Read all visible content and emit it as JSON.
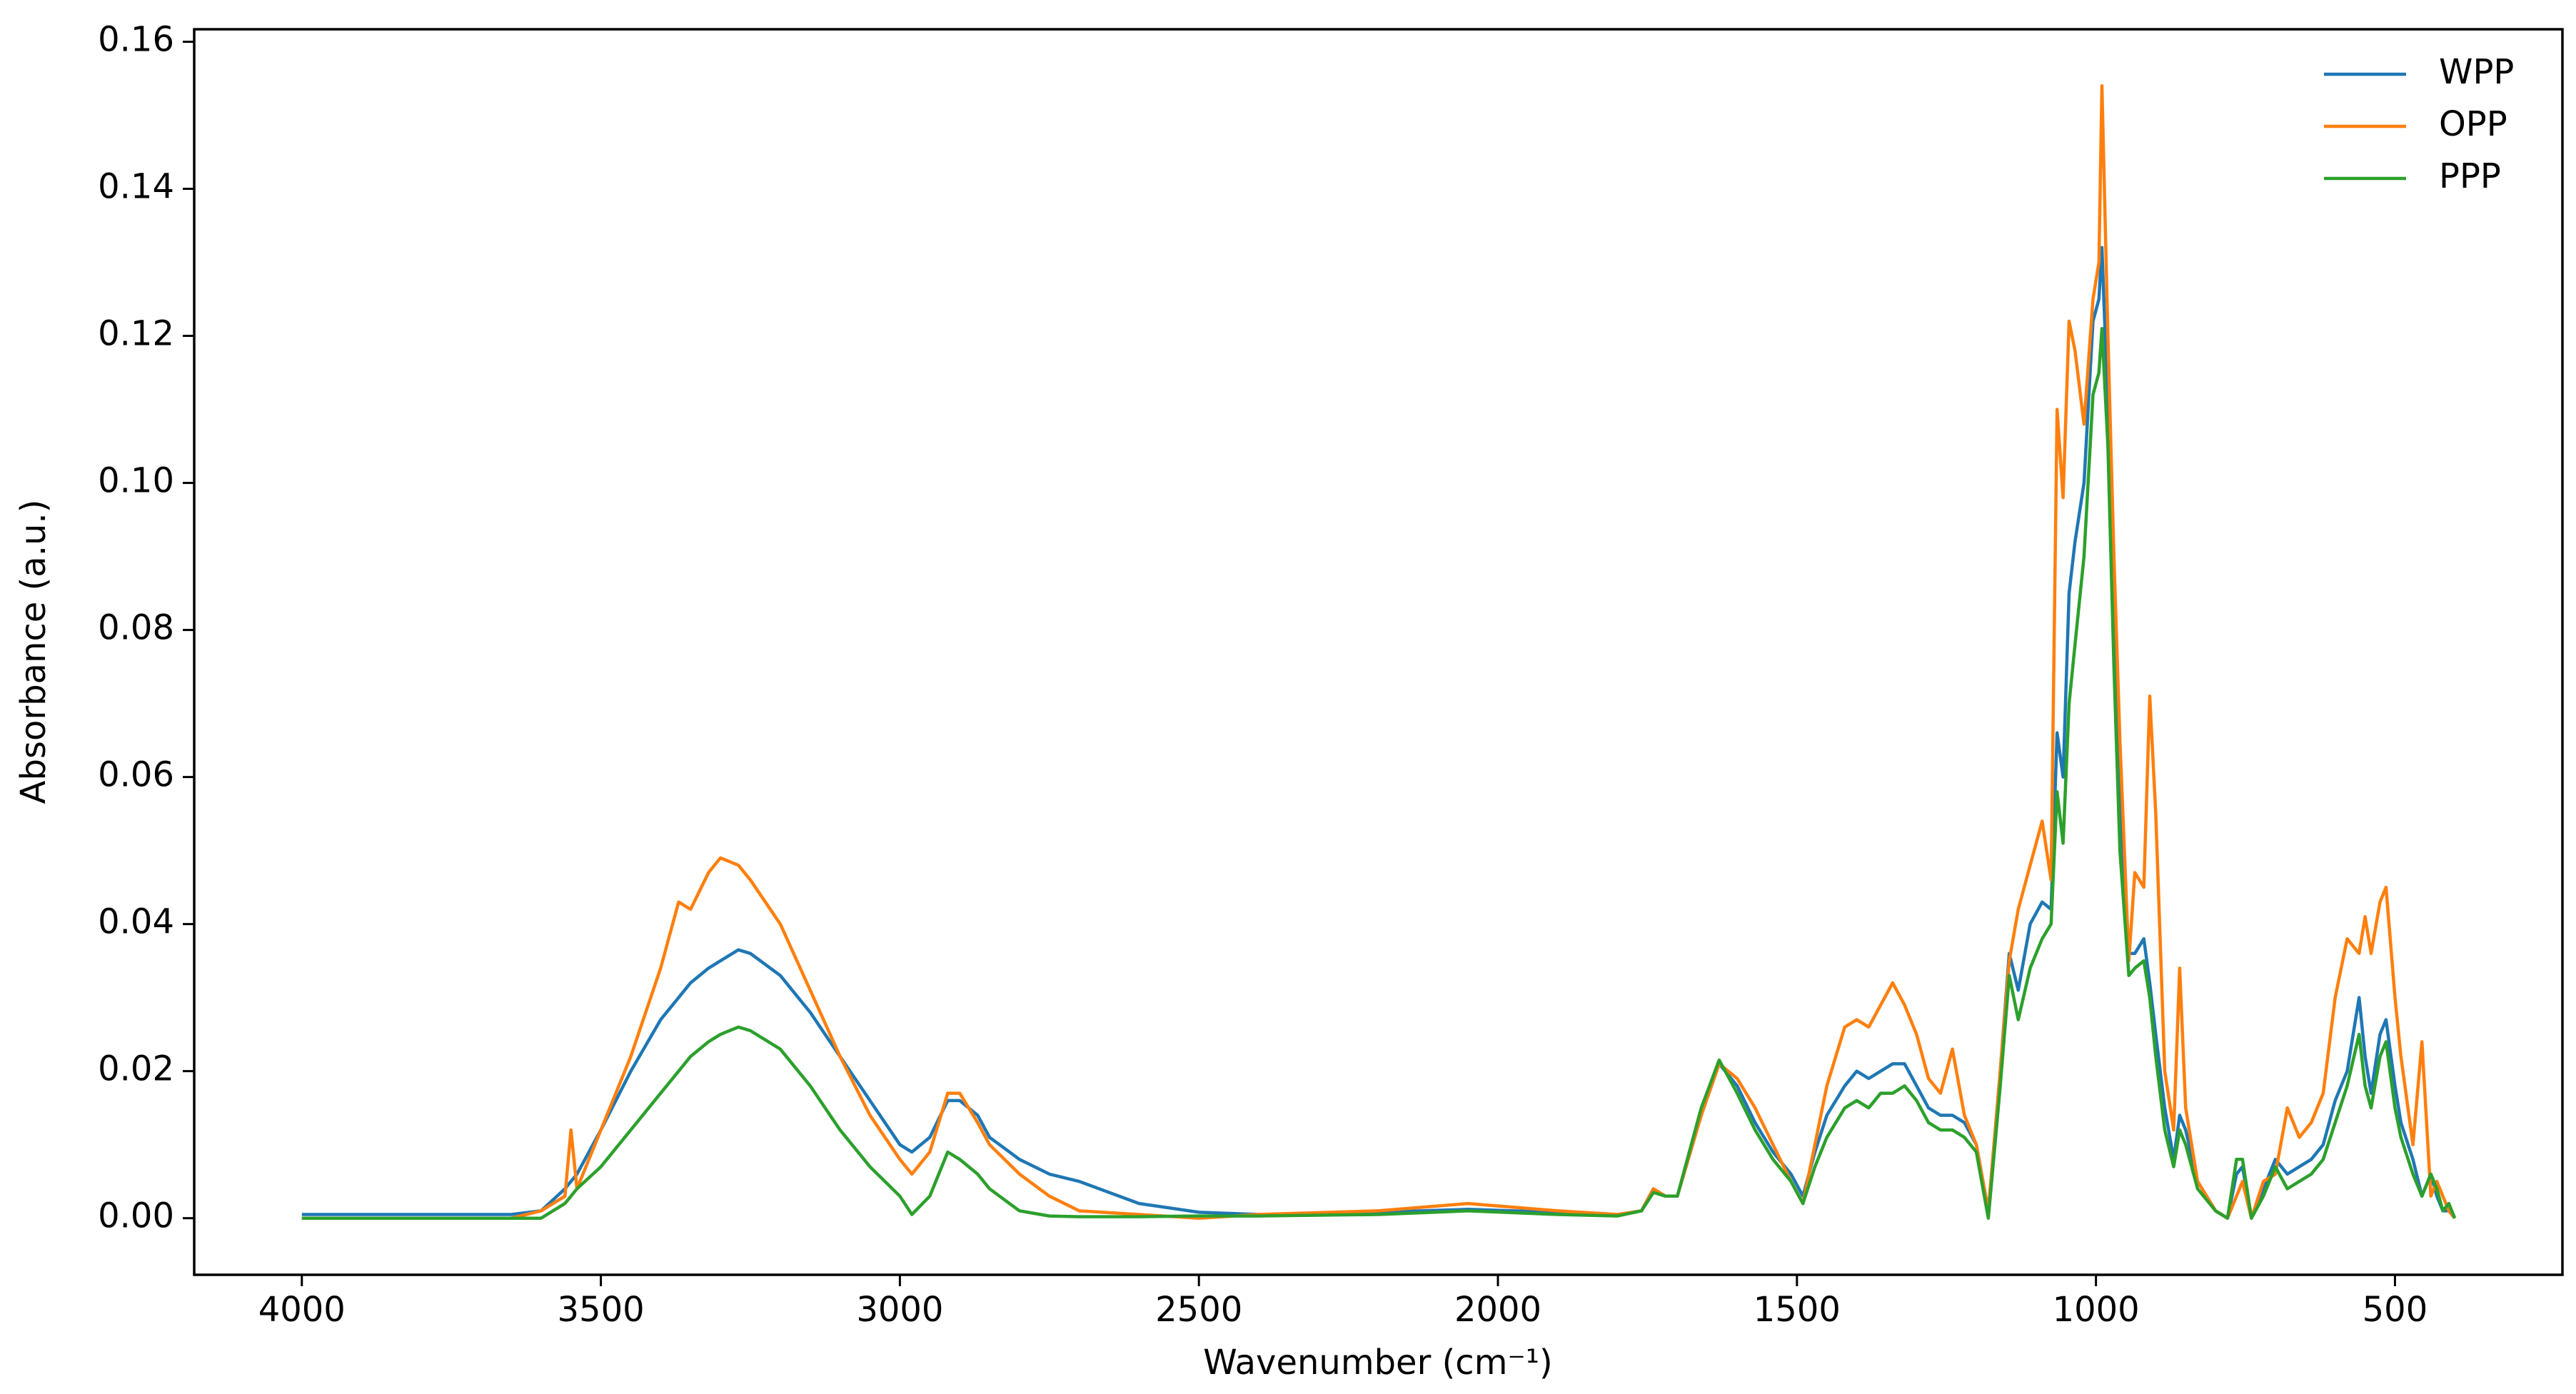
{
  "chart_data": {
    "type": "line",
    "x_label": "Wavenumber (cm⁻¹)",
    "y_label": "Absorbance (a.u.)",
    "x": [
      4000,
      3800,
      3650,
      3600,
      3560,
      3550,
      3540,
      3500,
      3450,
      3400,
      3370,
      3350,
      3320,
      3300,
      3270,
      3250,
      3200,
      3150,
      3100,
      3050,
      3000,
      2980,
      2950,
      2920,
      2900,
      2870,
      2850,
      2800,
      2750,
      2700,
      2600,
      2500,
      2400,
      2200,
      2050,
      1900,
      1800,
      1760,
      1740,
      1720,
      1700,
      1660,
      1630,
      1600,
      1570,
      1540,
      1510,
      1490,
      1470,
      1450,
      1420,
      1400,
      1380,
      1360,
      1340,
      1320,
      1300,
      1280,
      1260,
      1240,
      1220,
      1200,
      1180,
      1160,
      1145,
      1130,
      1110,
      1090,
      1075,
      1065,
      1055,
      1045,
      1035,
      1020,
      1005,
      995,
      990,
      980,
      970,
      960,
      945,
      935,
      920,
      910,
      900,
      885,
      870,
      860,
      850,
      830,
      800,
      780,
      765,
      755,
      740,
      720,
      700,
      680,
      660,
      640,
      620,
      600,
      580,
      560,
      550,
      540,
      525,
      515,
      500,
      490,
      470,
      455,
      440,
      430,
      420,
      410,
      400
    ],
    "series": [
      {
        "name": "WPP",
        "color": "#1f77b4",
        "values": [
          0.0005,
          0.0005,
          0.0005,
          0.001,
          0.004,
          0.005,
          0.006,
          0.012,
          0.02,
          0.027,
          0.03,
          0.032,
          0.034,
          0.035,
          0.0365,
          0.036,
          0.033,
          0.028,
          0.022,
          0.016,
          0.01,
          0.009,
          0.011,
          0.016,
          0.016,
          0.014,
          0.011,
          0.008,
          0.006,
          0.005,
          0.002,
          0.0008,
          0.0005,
          0.0008,
          0.0012,
          0.0008,
          0.0005,
          0.001,
          0.004,
          0.003,
          0.003,
          0.014,
          0.021,
          0.018,
          0.013,
          0.009,
          0.006,
          0.003,
          0.009,
          0.014,
          0.018,
          0.02,
          0.019,
          0.02,
          0.021,
          0.021,
          0.018,
          0.015,
          0.014,
          0.014,
          0.013,
          0.01,
          0.001,
          0.02,
          0.036,
          0.031,
          0.04,
          0.043,
          0.042,
          0.066,
          0.06,
          0.085,
          0.092,
          0.1,
          0.122,
          0.125,
          0.132,
          0.11,
          0.08,
          0.055,
          0.036,
          0.036,
          0.038,
          0.032,
          0.025,
          0.015,
          0.008,
          0.014,
          0.012,
          0.005,
          0.001,
          0,
          0.006,
          0.007,
          0,
          0.004,
          0.008,
          0.006,
          0.007,
          0.008,
          0.01,
          0.016,
          0.02,
          0.03,
          0.022,
          0.017,
          0.025,
          0.027,
          0.018,
          0.013,
          0.008,
          0.003,
          0.006,
          0.003,
          0.001,
          0.001,
          0
        ]
      },
      {
        "name": "OPP",
        "color": "#ff7f0e",
        "values": [
          0,
          0,
          0,
          0.001,
          0.003,
          0.012,
          0.004,
          0.012,
          0.022,
          0.034,
          0.043,
          0.042,
          0.047,
          0.049,
          0.048,
          0.046,
          0.04,
          0.031,
          0.022,
          0.014,
          0.008,
          0.006,
          0.009,
          0.017,
          0.017,
          0.013,
          0.01,
          0.006,
          0.003,
          0.001,
          0.0005,
          0,
          0.0005,
          0.001,
          0.002,
          0.001,
          0.0005,
          0.001,
          0.004,
          0.003,
          0.003,
          0.014,
          0.021,
          0.019,
          0.015,
          0.01,
          0.005,
          0.002,
          0.01,
          0.018,
          0.026,
          0.027,
          0.026,
          0.029,
          0.032,
          0.029,
          0.025,
          0.019,
          0.017,
          0.023,
          0.014,
          0.01,
          0.001,
          0.02,
          0.035,
          0.042,
          0.048,
          0.054,
          0.046,
          0.11,
          0.098,
          0.122,
          0.118,
          0.108,
          0.125,
          0.13,
          0.154,
          0.12,
          0.09,
          0.065,
          0.035,
          0.047,
          0.045,
          0.071,
          0.055,
          0.02,
          0.012,
          0.034,
          0.015,
          0.005,
          0.001,
          0,
          0.003,
          0.005,
          0,
          0.005,
          0.006,
          0.015,
          0.011,
          0.013,
          0.017,
          0.03,
          0.038,
          0.036,
          0.041,
          0.036,
          0.043,
          0.045,
          0.03,
          0.022,
          0.01,
          0.024,
          0.003,
          0.005,
          0.003,
          0.001,
          0
        ]
      },
      {
        "name": "PPP",
        "color": "#2ca02c",
        "values": [
          0,
          0,
          0,
          0,
          0.002,
          0.003,
          0.004,
          0.007,
          0.012,
          0.017,
          0.02,
          0.022,
          0.024,
          0.025,
          0.026,
          0.0255,
          0.023,
          0.018,
          0.012,
          0.007,
          0.003,
          0.0005,
          0.003,
          0.009,
          0.008,
          0.006,
          0.004,
          0.001,
          0.0003,
          0.0002,
          0.0002,
          0.0003,
          0.0003,
          0.0005,
          0.001,
          0.0005,
          0.0003,
          0.001,
          0.0035,
          0.003,
          0.003,
          0.015,
          0.0215,
          0.017,
          0.012,
          0.008,
          0.005,
          0.002,
          0.007,
          0.011,
          0.015,
          0.016,
          0.015,
          0.017,
          0.017,
          0.018,
          0.016,
          0.013,
          0.012,
          0.012,
          0.011,
          0.009,
          0,
          0.018,
          0.033,
          0.027,
          0.034,
          0.038,
          0.04,
          0.058,
          0.051,
          0.07,
          0.078,
          0.09,
          0.112,
          0.115,
          0.121,
          0.105,
          0.075,
          0.05,
          0.033,
          0.034,
          0.035,
          0.03,
          0.022,
          0.012,
          0.007,
          0.012,
          0.01,
          0.004,
          0.001,
          0,
          0.008,
          0.008,
          0,
          0.003,
          0.007,
          0.004,
          0.005,
          0.006,
          0.008,
          0.013,
          0.018,
          0.025,
          0.018,
          0.015,
          0.022,
          0.024,
          0.015,
          0.011,
          0.006,
          0.003,
          0.006,
          0.004,
          0.001,
          0.002,
          0
        ]
      }
    ],
    "xlim": [
      4180,
      220
    ],
    "ylim": [
      -0.0077,
      0.1617
    ],
    "xticks": [
      4000,
      3500,
      3000,
      2500,
      2000,
      1500,
      1000,
      500
    ],
    "yticks": [
      {
        "value": 0,
        "label": "0.00"
      },
      {
        "value": 0.02,
        "label": "0.02"
      },
      {
        "value": 0.04,
        "label": "0.04"
      },
      {
        "value": 0.06,
        "label": "0.06"
      },
      {
        "value": 0.08,
        "label": "0.08"
      },
      {
        "value": 0.1,
        "label": "0.10"
      },
      {
        "value": 0.12,
        "label": "0.12"
      },
      {
        "value": 0.14,
        "label": "0.14"
      },
      {
        "value": 0.16,
        "label": "0.16"
      }
    ],
    "legend": "upper right",
    "grid": false
  }
}
